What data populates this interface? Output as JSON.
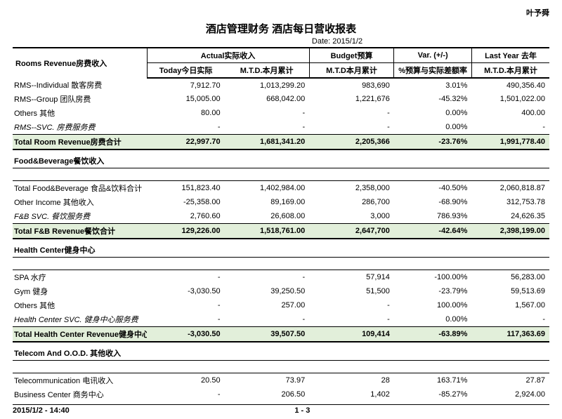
{
  "header": {
    "corner": "叶予舜",
    "title": "酒店管理财务  酒店每日营收报表",
    "date_label": "Date: 2015/1/2"
  },
  "columns": {
    "group_actual": "Actual实际收入",
    "group_budget": "Budget预算",
    "group_var": "Var. (+/-)",
    "group_last": "Last Year 去年",
    "today": "Today今日实际",
    "mtd": "M.T.D.本月累计",
    "budget_mtd": "M.T.D本月累计",
    "var_pct": "%预算与实际差额率",
    "last_mtd": "M.T.D.本月累计"
  },
  "sections": [
    {
      "title": "Rooms Revenue房费收入",
      "rows": [
        {
          "label": "RMS--Individual  散客房费",
          "today": "7,912.70",
          "mtd": "1,013,299.20",
          "budget": "983,690",
          "var": "3.01%",
          "last": "490,356.40"
        },
        {
          "label": "RMS--Group  团队房费",
          "today": "15,005.00",
          "mtd": "668,042.00",
          "budget": "1,221,676",
          "var": "-45.32%",
          "last": "1,501,022.00"
        },
        {
          "label": "Others  其他",
          "today": "80.00",
          "mtd": "-",
          "budget": "-",
          "var": "0.00%",
          "last": "400.00"
        },
        {
          "label": "RMS--SVC. 房费服务费",
          "italic": true,
          "today": "-",
          "mtd": "-",
          "budget": "-",
          "var": "0.00%",
          "last": "-"
        }
      ],
      "total": {
        "label": "Total Room Revenue房费合计",
        "today": "22,997.70",
        "mtd": "1,681,341.20",
        "budget": "2,205,366",
        "var": "-23.76%",
        "last": "1,991,778.40"
      }
    },
    {
      "title": "Food&Beverage餐饮收入",
      "rows": [
        {
          "label": "Total Food&Beverage  食品&饮料合计",
          "today": "151,823.40",
          "mtd": "1,402,984.00",
          "budget": "2,358,000",
          "var": "-40.50%",
          "last": "2,060,818.87"
        },
        {
          "label": "Other Income  其他收入",
          "today": "-25,358.00",
          "mtd": "89,169.00",
          "budget": "286,700",
          "var": "-68.90%",
          "last": "312,753.78"
        },
        {
          "label": "F&B SVC.  餐饮服务费",
          "italic": true,
          "today": "2,760.60",
          "mtd": "26,608.00",
          "budget": "3,000",
          "var": "786.93%",
          "last": "24,626.35"
        }
      ],
      "total": {
        "label": "Total F&B Revenue餐饮合计",
        "today": "129,226.00",
        "mtd": "1,518,761.00",
        "budget": "2,647,700",
        "var": "-42.64%",
        "last": "2,398,199.00"
      }
    },
    {
      "title": "Health Center健身中心",
      "rows": [
        {
          "label": "SPA  水疗",
          "today": "-",
          "mtd": "-",
          "budget": "57,914",
          "var": "-100.00%",
          "last": "56,283.00"
        },
        {
          "label": "Gym  健身",
          "today": "-3,030.50",
          "mtd": "39,250.50",
          "budget": "51,500",
          "var": "-23.79%",
          "last": "59,513.69"
        },
        {
          "label": "Others  其他",
          "today": "-",
          "mtd": "257.00",
          "budget": "-",
          "var": "100.00%",
          "last": "1,567.00"
        },
        {
          "label": "Health Center SVC.  健身中心服务费",
          "italic": true,
          "today": "-",
          "mtd": "-",
          "budget": "-",
          "var": "0.00%",
          "last": "-"
        }
      ],
      "total": {
        "label": "Total Health Center Revenue健身中心合计",
        "today": "-3,030.50",
        "mtd": "39,507.50",
        "budget": "109,414",
        "var": "-63.89%",
        "last": "117,363.69"
      }
    },
    {
      "title": "Telecom And O.O.D. 其他收入",
      "rows": [
        {
          "label": "Telecommunication  电讯收入",
          "today": "20.50",
          "mtd": "73.97",
          "budget": "28",
          "var": "163.71%",
          "last": "27.87"
        },
        {
          "label": "Business Center  商务中心",
          "today": "-",
          "mtd": "206.50",
          "budget": "1,402",
          "var": "-85.27%",
          "last": "2,924.00"
        }
      ]
    }
  ],
  "footer": {
    "left": "2015/1/2  -  14:40",
    "mid": "1  -  3"
  }
}
